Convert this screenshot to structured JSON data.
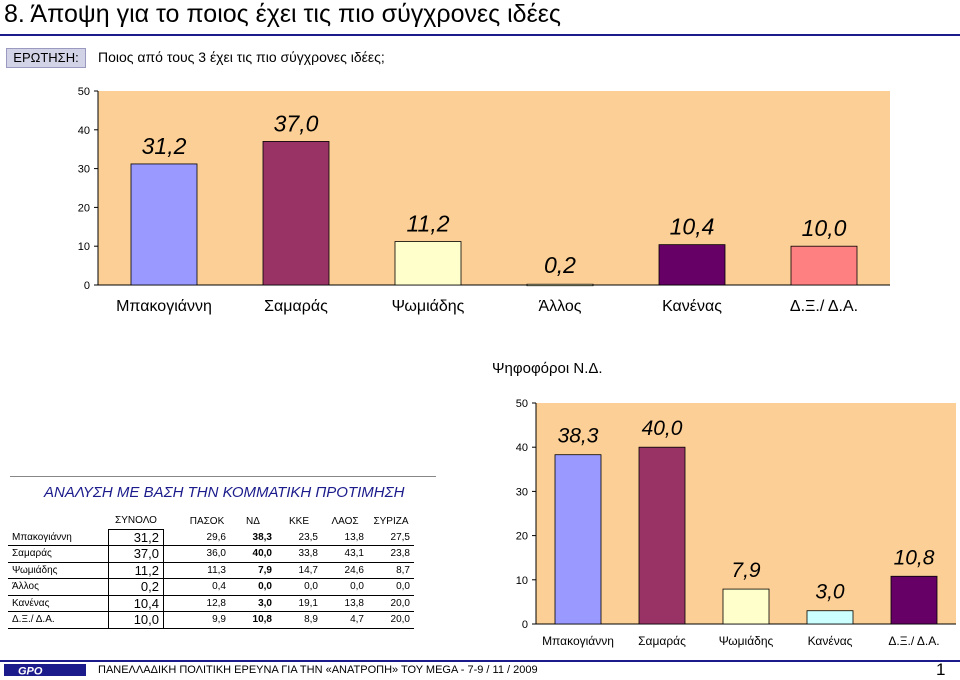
{
  "header": {
    "title": "8.   Άποψη για το ποιος έχει τις πιο σύγχρονες ιδέες",
    "question_label": "ΕΡΩΤΗΣΗ:",
    "question_text": "Ποιος από τους 3 έχει τις πιο σύγχρονες ιδέες;"
  },
  "chart_data": [
    {
      "type": "bar",
      "title": "",
      "categories": [
        "Μπακογιάννη",
        "Σαμαράς",
        "Ψωμιάδης",
        "Άλλος",
        "Κανένας",
        "Δ.Ξ./ Δ.Α."
      ],
      "values": [
        31.2,
        37.0,
        11.2,
        0.2,
        10.4,
        10.0
      ],
      "labels": [
        "31,2",
        "37,0",
        "11,2",
        "0,2",
        "10,4",
        "10,0"
      ],
      "colors": [
        "#9999ff",
        "#993366",
        "#ffffcc",
        "#ffffcc",
        "#660066",
        "#ff8080"
      ],
      "ylim": [
        0,
        50
      ],
      "yticks": [
        "0",
        "10",
        "20",
        "30",
        "40",
        "50"
      ],
      "grid": false,
      "background": "#fbcf95"
    },
    {
      "type": "bar",
      "title": "Ψηφοφόροι Ν.Δ.",
      "categories": [
        "Μπακογιάννη",
        "Σαμαράς",
        "Ψωμιάδης",
        "Κανένας",
        "Δ.Ξ./ Δ.Α."
      ],
      "values": [
        38.3,
        40.0,
        7.9,
        3.0,
        10.8
      ],
      "labels": [
        "38,3",
        "40,0",
        "7,9",
        "3,0",
        "10,8"
      ],
      "colors": [
        "#9999ff",
        "#993366",
        "#ffffcc",
        "#ccffff",
        "#660066"
      ],
      "ylim": [
        0,
        50
      ],
      "yticks": [
        "0",
        "10",
        "20",
        "30",
        "40",
        "50"
      ],
      "grid": false,
      "background": "#fbcf95"
    },
    {
      "type": "table",
      "title": "ΑΝΑΛΥΣΗ ΜΕ ΒΑΣΗ ΤΗΝ ΚΟΜΜΑΤΙΚΗ ΠΡΟΤΙΜΗΣΗ",
      "columns": [
        "ΣΥΝΟΛΟ",
        "ΠΑΣΟΚ",
        "ΝΔ",
        "ΚΚΕ",
        "ΛΑΟΣ",
        "ΣΥΡΙΖΑ"
      ],
      "rows": [
        {
          "label": "Μπακογιάννη",
          "total": "31,2",
          "values": [
            "29,6",
            "38,3",
            "23,5",
            "13,8",
            "27,5"
          ]
        },
        {
          "label": "Σαμαράς",
          "total": "37,0",
          "values": [
            "36,0",
            "40,0",
            "33,8",
            "43,1",
            "23,8"
          ]
        },
        {
          "label": "Ψωμιάδης",
          "total": "11,2",
          "values": [
            "11,3",
            "7,9",
            "14,7",
            "24,6",
            "8,7"
          ]
        },
        {
          "label": "Άλλος",
          "total": "0,2",
          "values": [
            "0,4",
            "0,0",
            "0,0",
            "0,0",
            "0,0"
          ]
        },
        {
          "label": "Κανένας",
          "total": "10,4",
          "values": [
            "12,8",
            "3,0",
            "19,1",
            "13,8",
            "20,0"
          ]
        },
        {
          "label": "Δ.Ξ./ Δ.Α.",
          "total": "10,0",
          "values": [
            "9,9",
            "10,8",
            "8,9",
            "4,7",
            "20,0"
          ]
        }
      ]
    }
  ],
  "footer": {
    "logo": "GPO",
    "text": "ΠΑΝΕΛΛΑΔΙΚΗ ΠΟΛΙΤΙΚΗ ΕΡΕΥΝΑ ΓΙΑ ΤΗΝ «ΑΝΑΤΡΟΠΗ» ΤΟΥ MEGA  -  7-9  / 11 / 2009",
    "page": "1"
  }
}
